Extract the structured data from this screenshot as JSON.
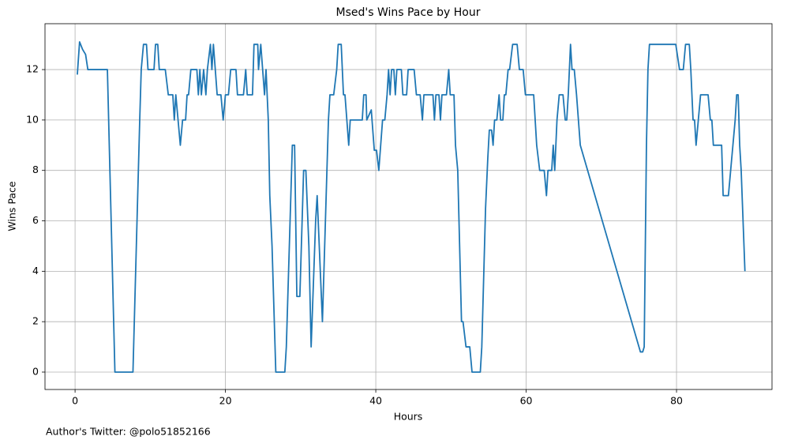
{
  "chart_data": {
    "type": "line",
    "title": "Msed's Wins Pace by Hour",
    "xlabel": "Hours",
    "ylabel": "Wins Pace",
    "footnote": "Author's Twitter: @polo51852166",
    "color": "#1f77b4",
    "grid": true,
    "x": [
      0.3,
      0.6,
      1,
      1.4,
      1.7,
      4.3,
      5.3,
      7.7,
      8.6,
      8.8,
      9.1,
      9.5,
      9.7,
      10.5,
      10.7,
      11,
      11.2,
      12,
      12.4,
      13,
      13.2,
      13.4,
      14,
      14.3,
      14.7,
      14.9,
      15.1,
      15.4,
      16.2,
      16.4,
      16.6,
      16.8,
      17.1,
      17.4,
      17.6,
      18,
      18.2,
      18.4,
      18.9,
      19.4,
      19.7,
      20,
      20.4,
      20.7,
      21.4,
      21.6,
      22.4,
      22.7,
      22.9,
      23.6,
      23.8,
      24.3,
      24.4,
      24.7,
      25.2,
      25.4,
      25.7,
      25.9,
      26.2,
      26.5,
      26.7,
      27.9,
      28.1,
      28.7,
      28.9,
      29.2,
      29.5,
      29.9,
      30.4,
      30.7,
      31.1,
      31.4,
      32,
      32.2,
      32.9,
      33.5,
      33.7,
      33.9,
      34.4,
      34.8,
      35,
      35.4,
      35.7,
      35.9,
      36.4,
      36.6,
      38.2,
      38.4,
      38.7,
      38.8,
      39.4,
      39.8,
      40.1,
      40.4,
      40.9,
      41.2,
      41.5,
      41.7,
      41.9,
      42.1,
      42.4,
      42.6,
      42.8,
      43.4,
      43.6,
      44.1,
      44.3,
      45.1,
      45.4,
      45.9,
      46.2,
      46.4,
      47.6,
      47.8,
      48,
      48.4,
      48.6,
      48.8,
      49.4,
      49.7,
      49.9,
      50.4,
      50.6,
      50.9,
      51.4,
      51.6,
      52,
      52.5,
      52.8,
      53.9,
      54.1,
      54.6,
      54.9,
      55.1,
      55.4,
      55.6,
      55.8,
      56.1,
      56.4,
      56.6,
      56.9,
      57.1,
      57.3,
      57.6,
      57.8,
      58.2,
      58.8,
      59.1,
      59.6,
      59.9,
      61,
      61.4,
      61.8,
      62.4,
      62.7,
      62.9,
      63.4,
      63.6,
      63.8,
      64.1,
      64.4,
      64.9,
      65.2,
      65.4,
      65.6,
      65.9,
      66.1,
      66.4,
      66.7,
      67.2,
      75.2,
      75.5,
      75.7,
      76,
      76.2,
      76.4,
      79.9,
      80.4,
      80.9,
      81.2,
      81.7,
      81.9,
      82.2,
      82.4,
      82.6,
      82.9,
      83.2,
      84.2,
      84.5,
      84.7,
      84.9,
      86,
      86.2,
      86.9,
      87.2,
      87.8,
      88,
      88.2,
      88.4,
      88.6,
      89.1
    ],
    "values": [
      11.8,
      13.1,
      12.8,
      12.6,
      12,
      12,
      0,
      0,
      10,
      12,
      13,
      13,
      12,
      12,
      13,
      13,
      12,
      12,
      11,
      11,
      10,
      11,
      9,
      10,
      10,
      11,
      11,
      12,
      12,
      11,
      12,
      11,
      12,
      11,
      12,
      13,
      12,
      13,
      11,
      11,
      10,
      11,
      11,
      12,
      12,
      11,
      11,
      12,
      11,
      11,
      13,
      13,
      12,
      13,
      11,
      12,
      10,
      7,
      5,
      2,
      0,
      0,
      1,
      7,
      9,
      9,
      3,
      3,
      8,
      8,
      5,
      1,
      6,
      7,
      2,
      8,
      10,
      11,
      11,
      12,
      13,
      13,
      11,
      11,
      9,
      10,
      10,
      11,
      11,
      10,
      10.4,
      8.8,
      8.8,
      8,
      10,
      10,
      11,
      12,
      11,
      12,
      12,
      11,
      12,
      12,
      11,
      11,
      12,
      12,
      11,
      11,
      10,
      11,
      11,
      10,
      11,
      11,
      10,
      11,
      11,
      12,
      11,
      11,
      9,
      8,
      2,
      2,
      1,
      1,
      0,
      0,
      1,
      6.5,
      8.5,
      9.6,
      9.6,
      9,
      10,
      10,
      11,
      10,
      10,
      11,
      11,
      12,
      12,
      13,
      13,
      12,
      12,
      11,
      11,
      9,
      8,
      8,
      7,
      8,
      8,
      9,
      8,
      10,
      11,
      11,
      10,
      10,
      11,
      13,
      12,
      12,
      11,
      9,
      0.8,
      0.8,
      1,
      9,
      12,
      13,
      13,
      12,
      12,
      13,
      13,
      12,
      10,
      10,
      9,
      10,
      11,
      11,
      10,
      10,
      9,
      9,
      7,
      7,
      8,
      10,
      11,
      11,
      9,
      8,
      4
    ],
    "xlim": [
      -4,
      92.7
    ],
    "ylim": [
      -0.69,
      13.82
    ],
    "xticks": [
      0,
      20,
      40,
      60,
      80
    ],
    "yticks": [
      0,
      2,
      4,
      6,
      8,
      10,
      12
    ]
  }
}
